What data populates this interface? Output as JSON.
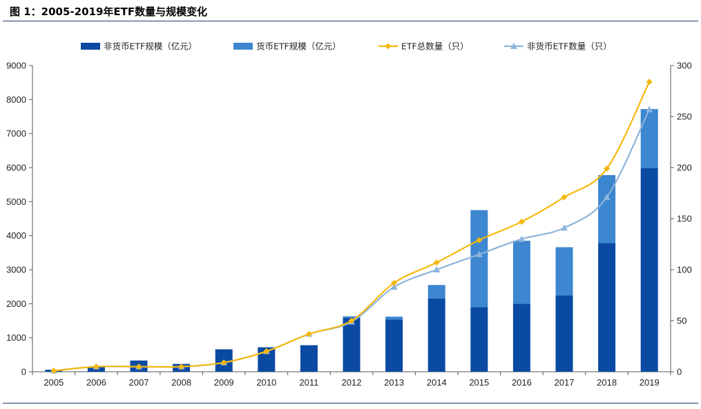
{
  "figure_title": "图 1：2005-2019年ETF数量与规模变化",
  "colors": {
    "non_money_scale": "#0b4aa3",
    "money_scale": "#3d86d0",
    "total_count": "#f5b80e",
    "non_money_count": "#8db4dc"
  },
  "chart_data": {
    "type": "bar",
    "categories": [
      "2005",
      "2006",
      "2007",
      "2008",
      "2009",
      "2010",
      "2011",
      "2012",
      "2013",
      "2014",
      "2015",
      "2016",
      "2017",
      "2018",
      "2019"
    ],
    "series": [
      {
        "name": "非货币ETF规模（亿元）",
        "kind": "stacked-bar",
        "axis": "left",
        "values": [
          60,
          140,
          330,
          230,
          660,
          720,
          780,
          1580,
          1530,
          2150,
          1900,
          2000,
          2240,
          3780,
          5980
        ]
      },
      {
        "name": "货币ETF规模（亿元）",
        "kind": "stacked-bar",
        "axis": "left",
        "values": [
          0,
          0,
          0,
          0,
          0,
          0,
          0,
          50,
          90,
          400,
          2850,
          1850,
          1420,
          2000,
          1740
        ]
      },
      {
        "name": "ETF总数量（只）",
        "kind": "line",
        "marker": "diamond",
        "axis": "right",
        "values": [
          1,
          5,
          5,
          5,
          9,
          20,
          37,
          50,
          87,
          107,
          129,
          147,
          171,
          199,
          284
        ]
      },
      {
        "name": "非货币ETF数量（只）",
        "kind": "line",
        "marker": "triangle",
        "axis": "right",
        "values": [
          1,
          5,
          5,
          5,
          9,
          20,
          37,
          49,
          83,
          100,
          115,
          130,
          141,
          171,
          257
        ]
      }
    ],
    "y_left": {
      "min": 0,
      "max": 9000,
      "ticks": [
        0,
        1000,
        2000,
        3000,
        4000,
        5000,
        6000,
        7000,
        8000,
        9000
      ]
    },
    "y_right": {
      "min": 0,
      "max": 300,
      "ticks": [
        0,
        50,
        100,
        150,
        200,
        250,
        300
      ]
    },
    "legend_position": "top",
    "grid": false
  }
}
